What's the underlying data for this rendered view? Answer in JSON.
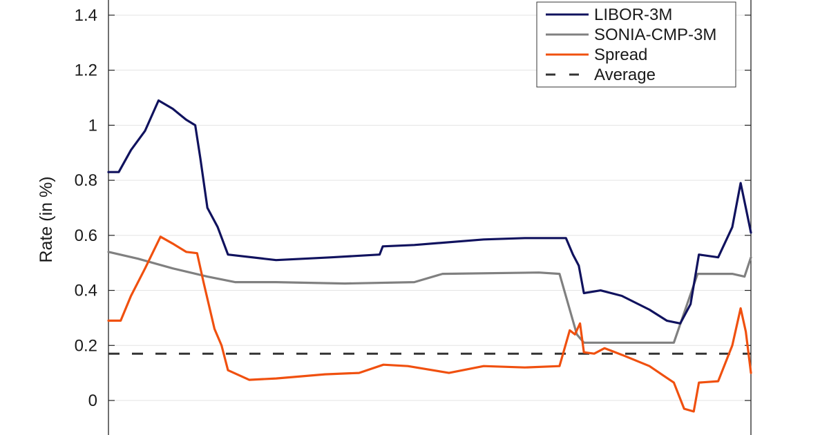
{
  "chart_data": {
    "type": "line",
    "title": "",
    "xlabel": "",
    "ylabel": "Rate (in %)",
    "ylim": [
      -0.125,
      1.455
    ],
    "yticks": [
      0,
      0.2,
      0.4,
      0.6,
      0.8,
      1,
      1.2,
      1.4
    ],
    "ytick_labels": [
      "0",
      "0.2",
      "0.4",
      "0.6",
      "0.8",
      "1",
      "1.2",
      "1.4"
    ],
    "xticks_visible": false,
    "grid": "horizontal",
    "legend_position": "upper right",
    "x_note": "x is normalized position across the plot (0 = left axis, 1 = right axis); no x tick labels are visible",
    "series": [
      {
        "name": "LIBOR-3M",
        "color": "#10125e",
        "style": "solid",
        "x": [
          0,
          0.016,
          0.035,
          0.057,
          0.078,
          0.1,
          0.121,
          0.135,
          0.143,
          0.154,
          0.17,
          0.186,
          0.261,
          0.347,
          0.422,
          0.427,
          0.476,
          0.584,
          0.648,
          0.712,
          0.723,
          0.732,
          0.74,
          0.766,
          0.799,
          0.842,
          0.869,
          0.89,
          0.906,
          0.919,
          0.949,
          0.971,
          0.984,
          0.992,
          1.0
        ],
        "values": [
          0.83,
          0.83,
          0.91,
          0.98,
          1.09,
          1.06,
          1.02,
          1.0,
          0.88,
          0.7,
          0.63,
          0.53,
          0.51,
          0.52,
          0.53,
          0.56,
          0.565,
          0.585,
          0.59,
          0.59,
          0.53,
          0.49,
          0.39,
          0.4,
          0.38,
          0.33,
          0.29,
          0.28,
          0.35,
          0.53,
          0.52,
          0.63,
          0.79,
          0.7,
          0.61
        ]
      },
      {
        "name": "SONIA-CMP-3M",
        "color": "#808080",
        "style": "solid",
        "x": [
          0,
          0.046,
          0.1,
          0.154,
          0.197,
          0.261,
          0.368,
          0.476,
          0.52,
          0.67,
          0.702,
          0.729,
          0.74,
          0.88,
          0.917,
          0.971,
          0.99,
          1.0
        ],
        "values": [
          0.54,
          0.515,
          0.48,
          0.45,
          0.43,
          0.43,
          0.425,
          0.43,
          0.46,
          0.465,
          0.46,
          0.24,
          0.21,
          0.21,
          0.46,
          0.46,
          0.45,
          0.52
        ]
      },
      {
        "name": "Spread",
        "color": "#f0500f",
        "style": "solid",
        "x": [
          0,
          0.019,
          0.035,
          0.057,
          0.081,
          0.1,
          0.121,
          0.138,
          0.148,
          0.165,
          0.176,
          0.186,
          0.219,
          0.261,
          0.337,
          0.39,
          0.428,
          0.466,
          0.53,
          0.584,
          0.648,
          0.702,
          0.718,
          0.726,
          0.734,
          0.74,
          0.756,
          0.772,
          0.8,
          0.842,
          0.864,
          0.88,
          0.896,
          0.911,
          0.919,
          0.949,
          0.971,
          0.984,
          0.992,
          1.0
        ],
        "values": [
          0.29,
          0.29,
          0.38,
          0.48,
          0.595,
          0.57,
          0.54,
          0.535,
          0.43,
          0.26,
          0.2,
          0.11,
          0.075,
          0.08,
          0.095,
          0.1,
          0.13,
          0.125,
          0.1,
          0.125,
          0.12,
          0.125,
          0.255,
          0.24,
          0.28,
          0.175,
          0.17,
          0.19,
          0.165,
          0.125,
          0.09,
          0.065,
          -0.03,
          -0.04,
          0.065,
          0.07,
          0.2,
          0.335,
          0.25,
          0.1
        ]
      },
      {
        "name": "Average",
        "color": "#333333",
        "style": "dashed",
        "x": [
          0,
          1
        ],
        "values": [
          0.17,
          0.17
        ]
      }
    ]
  },
  "legend": {
    "items": [
      {
        "label": "LIBOR-3M",
        "color": "#10125e",
        "style": "solid"
      },
      {
        "label": "SONIA-CMP-3M",
        "color": "#808080",
        "style": "solid"
      },
      {
        "label": "Spread",
        "color": "#f0500f",
        "style": "solid"
      },
      {
        "label": "Average",
        "color": "#333333",
        "style": "dashed"
      }
    ]
  }
}
